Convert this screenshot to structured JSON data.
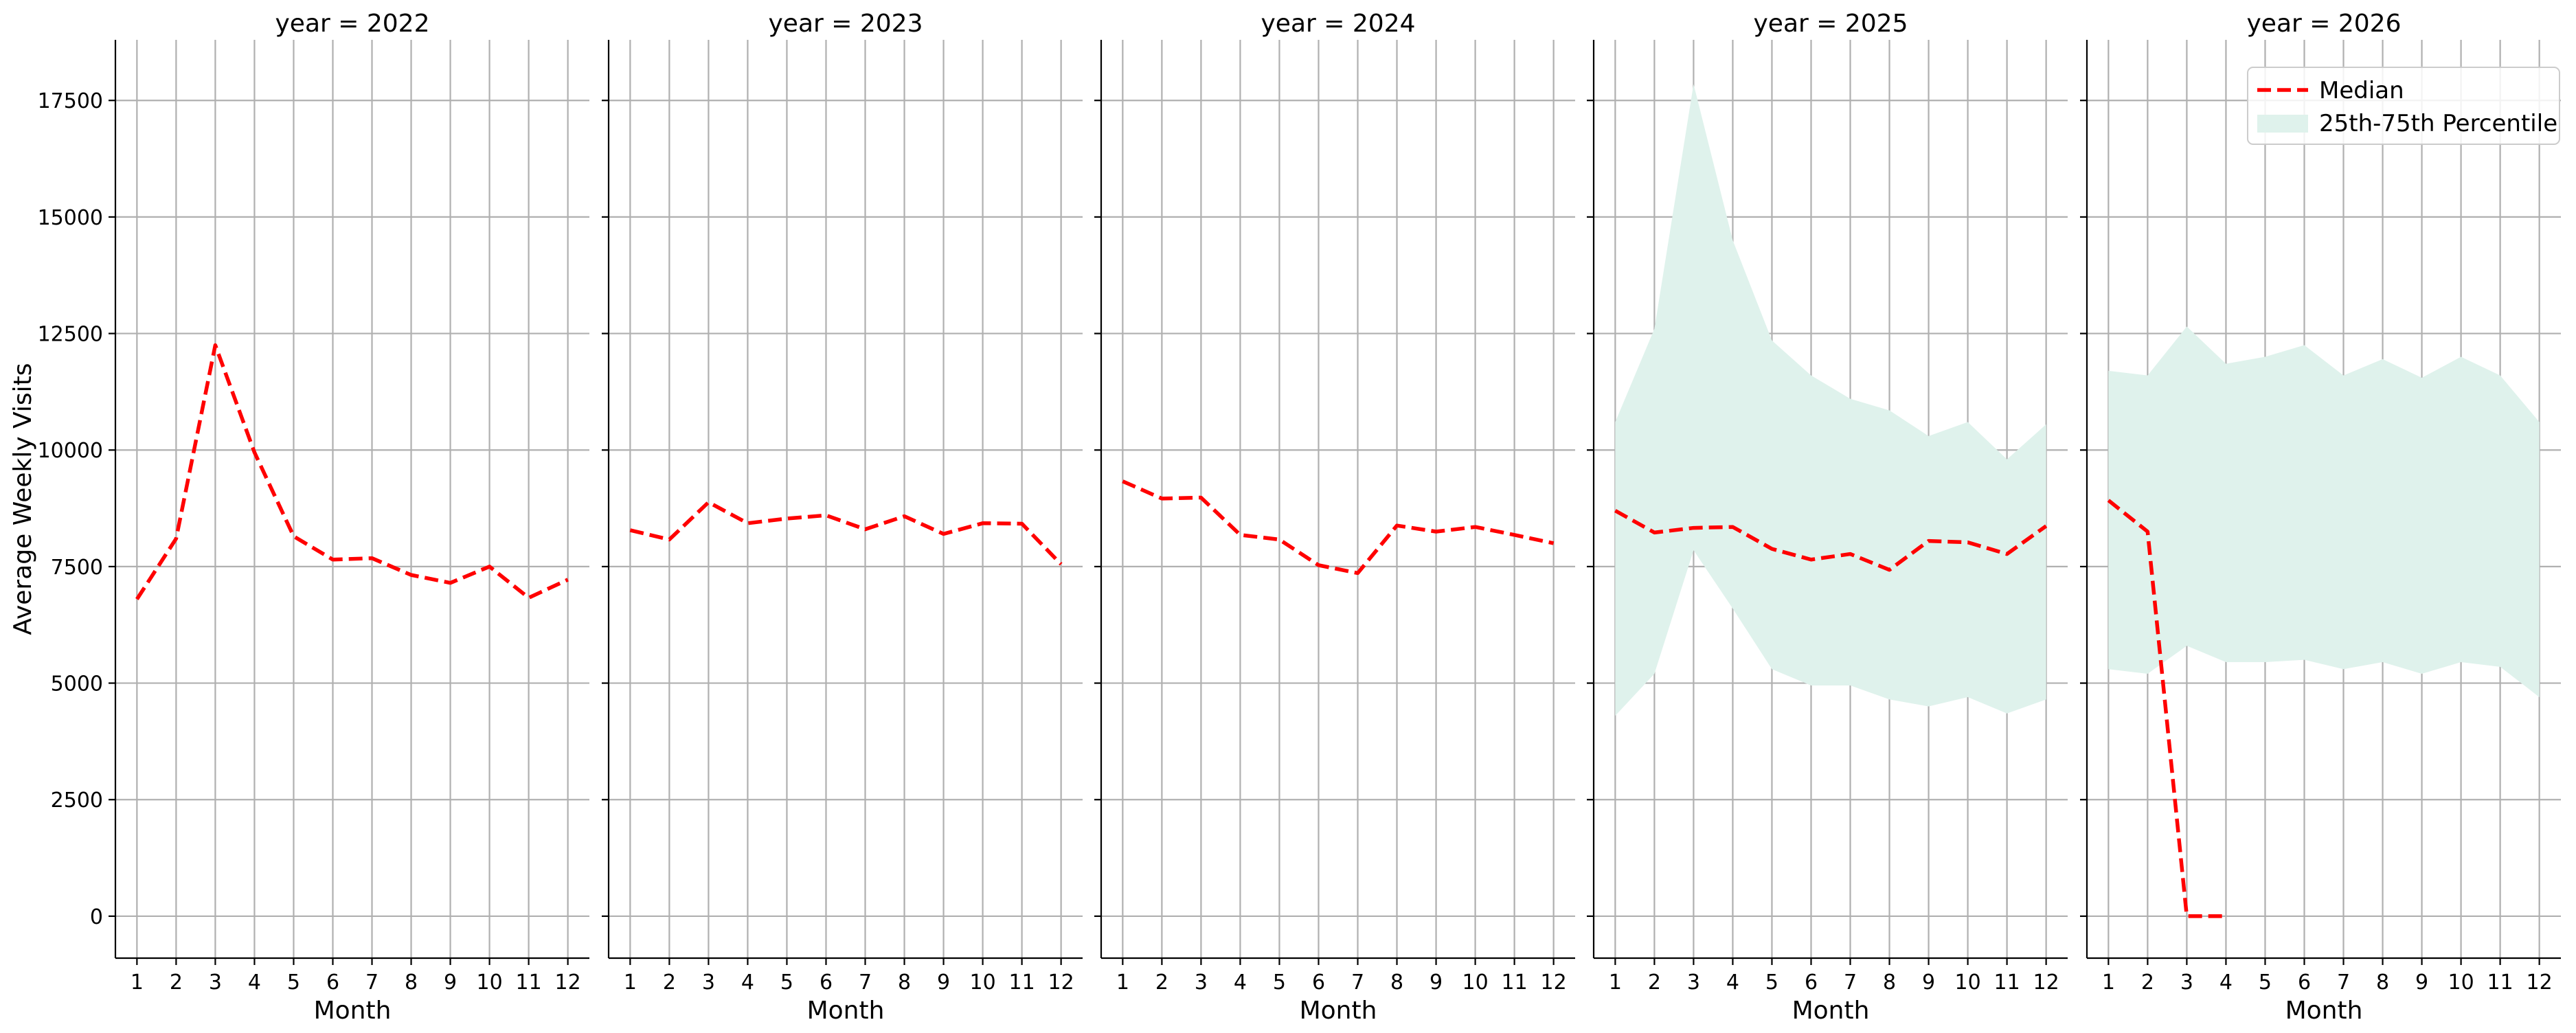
{
  "chart_data": {
    "type": "line",
    "ylabel": "Average Weekly Visits",
    "xlabel": "Month",
    "ylim": [
      -900,
      18800
    ],
    "xlim": [
      0.45,
      12.55
    ],
    "x_ticks": [
      1,
      2,
      3,
      4,
      5,
      6,
      7,
      8,
      9,
      10,
      11,
      12
    ],
    "y_ticks": [
      0,
      2500,
      5000,
      7500,
      10000,
      12500,
      15000,
      17500
    ],
    "grid": true,
    "legend_placement": "top-right",
    "colors": {
      "median": "#ff0000",
      "band": "#dff2ec"
    },
    "legend": [
      {
        "label": "Median",
        "type": "line"
      },
      {
        "label": "25th-75th Percentile",
        "type": "area"
      }
    ],
    "panels": [
      {
        "title": "year = 2022",
        "median": [
          [
            1,
            6800
          ],
          [
            2,
            8100
          ],
          [
            3,
            12250
          ],
          [
            4,
            9950
          ],
          [
            5,
            8150
          ],
          [
            6,
            7650
          ],
          [
            7,
            7680
          ],
          [
            8,
            7320
          ],
          [
            9,
            7150
          ],
          [
            10,
            7500
          ],
          [
            11,
            6830
          ],
          [
            12,
            7220
          ]
        ],
        "band": []
      },
      {
        "title": "year = 2023",
        "median": [
          [
            1,
            8280
          ],
          [
            2,
            8080
          ],
          [
            3,
            8880
          ],
          [
            4,
            8430
          ],
          [
            5,
            8530
          ],
          [
            6,
            8600
          ],
          [
            7,
            8300
          ],
          [
            8,
            8580
          ],
          [
            9,
            8200
          ],
          [
            10,
            8430
          ],
          [
            11,
            8420
          ],
          [
            12,
            7550
          ]
        ],
        "band": []
      },
      {
        "title": "year = 2024",
        "median": [
          [
            1,
            9330
          ],
          [
            2,
            8960
          ],
          [
            3,
            8980
          ],
          [
            4,
            8180
          ],
          [
            5,
            8080
          ],
          [
            6,
            7530
          ],
          [
            7,
            7360
          ],
          [
            8,
            8380
          ],
          [
            9,
            8250
          ],
          [
            10,
            8350
          ],
          [
            11,
            8180
          ],
          [
            12,
            8000
          ]
        ],
        "band": []
      },
      {
        "title": "year = 2025",
        "median": [
          [
            1,
            8700
          ],
          [
            2,
            8230
          ],
          [
            3,
            8330
          ],
          [
            4,
            8350
          ],
          [
            5,
            7880
          ],
          [
            6,
            7650
          ],
          [
            7,
            7770
          ],
          [
            8,
            7430
          ],
          [
            9,
            8050
          ],
          [
            10,
            8020
          ],
          [
            11,
            7770
          ],
          [
            12,
            8370
          ]
        ],
        "band": [
          [
            1,
            4300,
            10600
          ],
          [
            2,
            5200,
            12600
          ],
          [
            3,
            7850,
            17850
          ],
          [
            4,
            6600,
            14500
          ],
          [
            5,
            5300,
            12350
          ],
          [
            6,
            4950,
            11600
          ],
          [
            7,
            4950,
            11100
          ],
          [
            8,
            4650,
            10850
          ],
          [
            9,
            4500,
            10300
          ],
          [
            10,
            4700,
            10600
          ],
          [
            11,
            4350,
            9800
          ],
          [
            12,
            4650,
            10550
          ]
        ]
      },
      {
        "title": "year = 2026",
        "median": [
          [
            1,
            8920
          ],
          [
            2,
            8250
          ],
          [
            3,
            0
          ],
          [
            4,
            0
          ]
        ],
        "band": [
          [
            1,
            5300,
            11700
          ],
          [
            2,
            5200,
            11600
          ],
          [
            3,
            5800,
            12650
          ],
          [
            4,
            5450,
            11850
          ],
          [
            5,
            5450,
            12000
          ],
          [
            6,
            5500,
            12250
          ],
          [
            7,
            5300,
            11600
          ],
          [
            8,
            5450,
            11950
          ],
          [
            9,
            5200,
            11550
          ],
          [
            10,
            5450,
            12000
          ],
          [
            11,
            5350,
            11600
          ],
          [
            12,
            4700,
            10600
          ]
        ]
      }
    ]
  }
}
